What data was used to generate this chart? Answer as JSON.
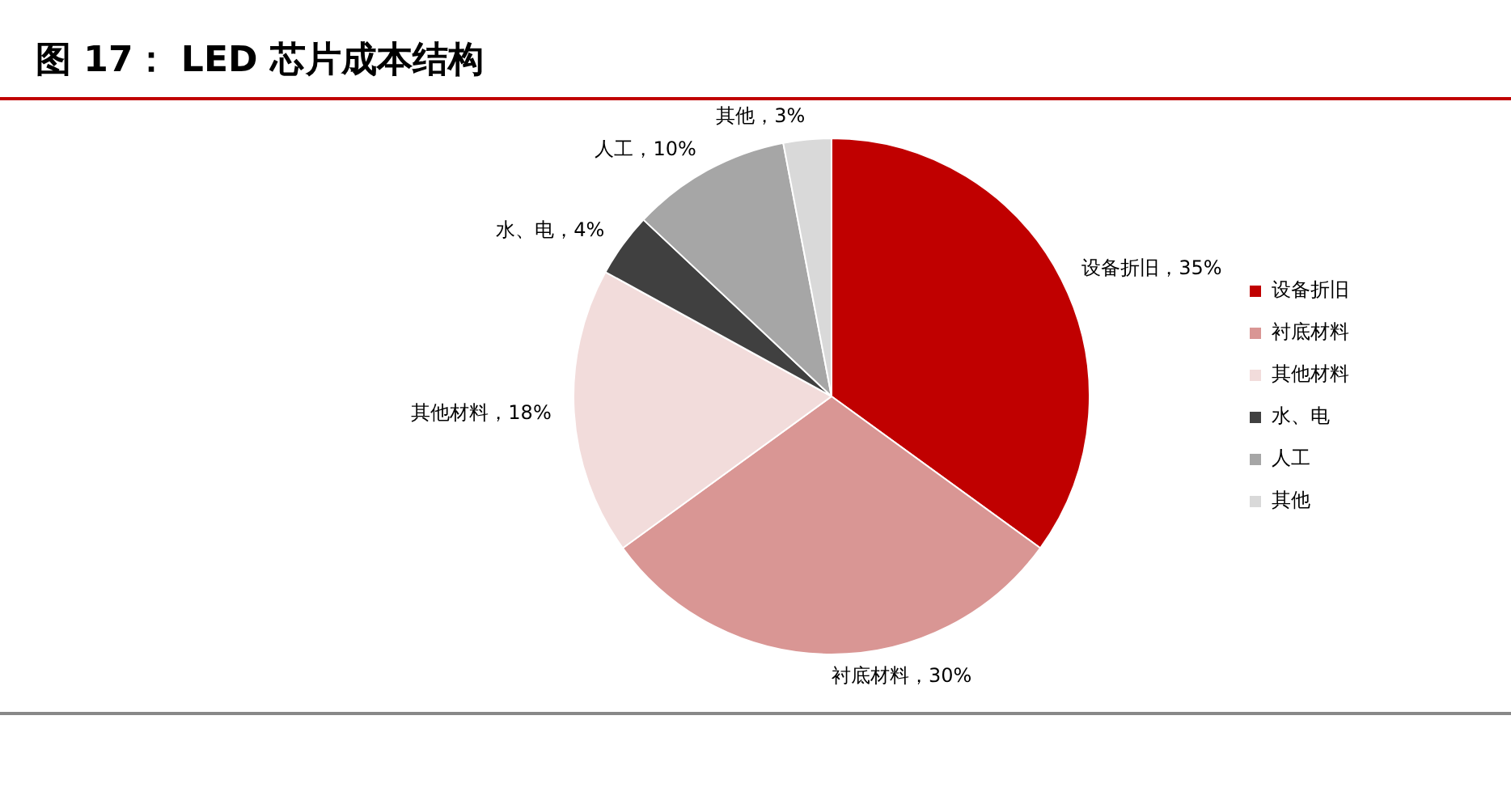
{
  "chart_data": {
    "type": "pie",
    "title": "图 17： LED 芯片成本结构",
    "categories": [
      "设备折旧",
      "衬底材料",
      "其他材料",
      "水、电",
      "人工",
      "其他"
    ],
    "values": [
      35,
      30,
      18,
      4,
      10,
      3
    ],
    "colors": [
      "#c00000",
      "#d99694",
      "#f2dcdb",
      "#404040",
      "#a6a6a6",
      "#d9d9d9"
    ],
    "value_labels": [
      "设备折旧，35%",
      "衬底材料，30%",
      "其他材料，18%",
      "水、电，4%",
      "人工，10%",
      "其他，3%"
    ],
    "legend": "right"
  }
}
